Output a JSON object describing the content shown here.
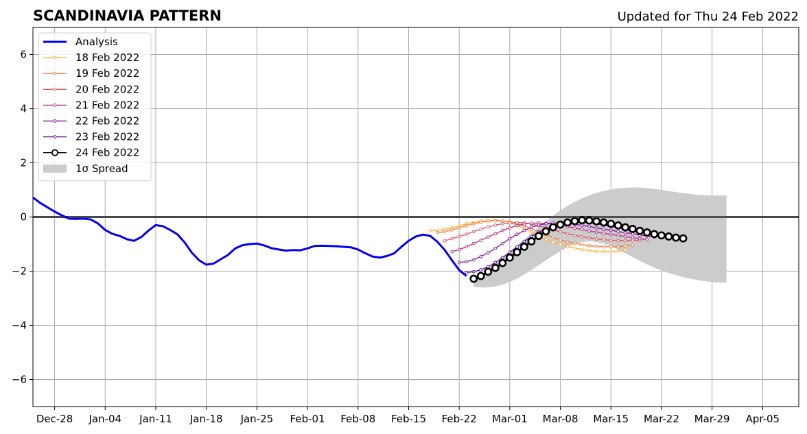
{
  "chart_data": {
    "type": "line",
    "title": "SCANDINAVIA PATTERN",
    "subtitle": "Updated for Thu 24 Feb 2022",
    "ylim": [
      -7,
      7
    ],
    "yticks": [
      -6,
      -4,
      -2,
      0,
      2,
      4,
      6
    ],
    "ytick_labels": [
      "−6",
      "−4",
      "−2",
      "0",
      "2",
      "4",
      "6"
    ],
    "x_start": "2021-12-25",
    "x_end": "2022-04-10",
    "xticks": [
      "2021-12-28",
      "2022-01-04",
      "2022-01-11",
      "2022-01-18",
      "2022-01-25",
      "2022-02-01",
      "2022-02-08",
      "2022-02-15",
      "2022-02-22",
      "2022-03-01",
      "2022-03-08",
      "2022-03-15",
      "2022-03-22",
      "2022-03-29",
      "2022-04-05"
    ],
    "xtick_labels": [
      "Dec-28",
      "Jan-04",
      "Jan-11",
      "Jan-18",
      "Jan-25",
      "Feb-01",
      "Feb-08",
      "Feb-15",
      "Feb-22",
      "Mar-01",
      "Mar-08",
      "Mar-15",
      "Mar-22",
      "Mar-29",
      "Apr-05"
    ],
    "grid": true,
    "legend_position": "top-left",
    "series": [
      {
        "name": "Analysis",
        "kind": "analysis",
        "color": "#0000ee",
        "start": "2021-12-25",
        "values": [
          0.72,
          0.52,
          0.36,
          0.2,
          0.06,
          -0.06,
          -0.07,
          -0.06,
          -0.09,
          -0.24,
          -0.48,
          -0.62,
          -0.7,
          -0.82,
          -0.88,
          -0.74,
          -0.5,
          -0.3,
          -0.34,
          -0.48,
          -0.64,
          -0.94,
          -1.32,
          -1.6,
          -1.76,
          -1.72,
          -1.56,
          -1.4,
          -1.16,
          -1.04,
          -1.0,
          -0.98,
          -1.05,
          -1.15,
          -1.2,
          -1.24,
          -1.22,
          -1.23,
          -1.16,
          -1.07,
          -1.06,
          -1.07,
          -1.08,
          -1.1,
          -1.12,
          -1.2,
          -1.34,
          -1.46,
          -1.5,
          -1.44,
          -1.34,
          -1.1,
          -0.88,
          -0.72,
          -0.65,
          -0.7,
          -0.92,
          -1.22,
          -1.6,
          -1.96,
          -2.18
        ]
      },
      {
        "name": "18 Feb 2022",
        "kind": "forecast",
        "color": "#ffb13b",
        "start": "2022-02-18",
        "values": [
          -0.5,
          -0.5,
          -0.45,
          -0.4,
          -0.33,
          -0.25,
          -0.2,
          -0.15,
          -0.14,
          -0.12,
          -0.15,
          -0.21,
          -0.3,
          -0.42,
          -0.56,
          -0.72,
          -0.83,
          -0.93,
          -1.02,
          -1.1,
          -1.15,
          -1.2,
          -1.24,
          -1.27,
          -1.28,
          -1.28,
          -1.26,
          -1.22
        ]
      },
      {
        "name": "19 Feb 2022",
        "kind": "forecast",
        "color": "#f57f3f",
        "start": "2022-02-19",
        "values": [
          -0.58,
          -0.54,
          -0.48,
          -0.4,
          -0.32,
          -0.25,
          -0.19,
          -0.15,
          -0.13,
          -0.14,
          -0.18,
          -0.25,
          -0.33,
          -0.43,
          -0.54,
          -0.65,
          -0.75,
          -0.85,
          -0.92,
          -0.97,
          -1.02,
          -1.06,
          -1.08,
          -1.1,
          -1.1,
          -1.1,
          -1.07,
          -1.04
        ]
      },
      {
        "name": "20 Feb 2022",
        "kind": "forecast",
        "color": "#dd5a6b",
        "start": "2022-02-20",
        "values": [
          -0.88,
          -0.8,
          -0.72,
          -0.63,
          -0.54,
          -0.45,
          -0.37,
          -0.3,
          -0.25,
          -0.22,
          -0.2,
          -0.22,
          -0.26,
          -0.32,
          -0.4,
          -0.48,
          -0.55,
          -0.62,
          -0.68,
          -0.73,
          -0.77,
          -0.81,
          -0.84,
          -0.86,
          -0.87,
          -0.87,
          -0.86,
          -0.86
        ]
      },
      {
        "name": "21 Feb 2022",
        "kind": "forecast",
        "color": "#b8338c",
        "start": "2022-02-21",
        "values": [
          -1.28,
          -1.2,
          -1.1,
          -0.98,
          -0.86,
          -0.74,
          -0.62,
          -0.5,
          -0.4,
          -0.32,
          -0.26,
          -0.23,
          -0.22,
          -0.24,
          -0.26,
          -0.3,
          -0.35,
          -0.41,
          -0.46,
          -0.52,
          -0.56,
          -0.6,
          -0.64,
          -0.68,
          -0.72,
          -0.76,
          -0.8,
          -0.84
        ]
      },
      {
        "name": "22 Feb 2022",
        "kind": "forecast",
        "color": "#8c1f9e",
        "start": "2022-02-22",
        "values": [
          -1.68,
          -1.65,
          -1.58,
          -1.46,
          -1.32,
          -1.16,
          -0.98,
          -0.8,
          -0.64,
          -0.5,
          -0.38,
          -0.3,
          -0.25,
          -0.22,
          -0.22,
          -0.24,
          -0.27,
          -0.31,
          -0.35,
          -0.4,
          -0.45,
          -0.49,
          -0.54,
          -0.58,
          -0.62,
          -0.66,
          -0.7,
          -0.74
        ]
      },
      {
        "name": "23 Feb 2022",
        "kind": "forecast",
        "color": "#5a0e90",
        "start": "2022-02-23",
        "values": [
          -2.05,
          -2.02,
          -1.95,
          -1.84,
          -1.68,
          -1.5,
          -1.3,
          -1.1,
          -0.9,
          -0.72,
          -0.56,
          -0.44,
          -0.34,
          -0.27,
          -0.22,
          -0.2,
          -0.2,
          -0.22,
          -0.25,
          -0.3,
          -0.35,
          -0.4,
          -0.46,
          -0.51,
          -0.56,
          -0.6,
          -0.64,
          -0.68
        ]
      },
      {
        "name": "24 Feb 2022",
        "kind": "current",
        "color": "#000000",
        "start": "2022-02-24",
        "values": [
          -2.28,
          -2.18,
          -2.02,
          -1.88,
          -1.7,
          -1.5,
          -1.3,
          -1.1,
          -0.9,
          -0.7,
          -0.53,
          -0.38,
          -0.28,
          -0.2,
          -0.15,
          -0.12,
          -0.13,
          -0.16,
          -0.2,
          -0.25,
          -0.31,
          -0.38,
          -0.44,
          -0.51,
          -0.57,
          -0.63,
          -0.68,
          -0.72,
          -0.76,
          -0.79
        ]
      }
    ],
    "spread": {
      "name": "1σ Spread",
      "color": "#cccccc",
      "start": "2022-02-24",
      "upper": [
        -2.28,
        -2.12,
        -1.95,
        -1.76,
        -1.55,
        -1.32,
        -1.08,
        -0.84,
        -0.6,
        -0.38,
        -0.16,
        0.05,
        0.24,
        0.41,
        0.56,
        0.69,
        0.8,
        0.89,
        0.96,
        1.02,
        1.06,
        1.08,
        1.09,
        1.09,
        1.07,
        1.04,
        1.0,
        0.96,
        0.92,
        0.88,
        0.85,
        0.82,
        0.8,
        0.79,
        0.79,
        0.79
      ],
      "lower": [
        -2.58,
        -2.6,
        -2.6,
        -2.56,
        -2.5,
        -2.4,
        -2.28,
        -2.12,
        -1.96,
        -1.78,
        -1.6,
        -1.42,
        -1.26,
        -1.12,
        -1.0,
        -0.92,
        -0.9,
        -0.92,
        -0.98,
        -1.08,
        -1.2,
        -1.34,
        -1.48,
        -1.62,
        -1.75,
        -1.87,
        -1.98,
        -2.07,
        -2.15,
        -2.22,
        -2.28,
        -2.33,
        -2.37,
        -2.4,
        -2.42,
        -2.42
      ]
    }
  }
}
